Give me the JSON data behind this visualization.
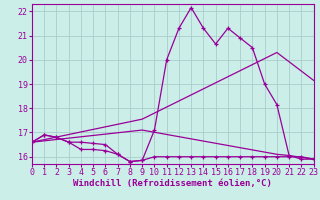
{
  "xlabel": "Windchill (Refroidissement éolien,°C)",
  "bg_color": "#cceee8",
  "grid_color": "#aacccc",
  "line_color": "#990099",
  "xlim": [
    0,
    23
  ],
  "ylim": [
    15.7,
    22.3
  ],
  "xticks": [
    0,
    1,
    2,
    3,
    4,
    5,
    6,
    7,
    8,
    9,
    10,
    11,
    12,
    13,
    14,
    15,
    16,
    17,
    18,
    19,
    20,
    21,
    22,
    23
  ],
  "yticks": [
    16,
    17,
    18,
    19,
    20,
    21,
    22
  ],
  "font_color": "#990099",
  "font_size_label": 6.5,
  "font_size_tick": 6,
  "line1_x": [
    0,
    1,
    2,
    3,
    4,
    5,
    6,
    7,
    8,
    9,
    10,
    11,
    12,
    13,
    14,
    15,
    16,
    17,
    18,
    19,
    20,
    21,
    22,
    23
  ],
  "line1_y": [
    16.6,
    16.9,
    16.8,
    16.6,
    16.3,
    16.3,
    16.25,
    16.1,
    15.8,
    15.85,
    16.0,
    16.0,
    16.0,
    16.0,
    16.0,
    16.0,
    16.0,
    16.0,
    16.0,
    16.0,
    16.0,
    16.0,
    16.0,
    15.9
  ],
  "line2_x": [
    0,
    1,
    2,
    3,
    4,
    5,
    6,
    7,
    8,
    9,
    10,
    11,
    12,
    13,
    14,
    15,
    16,
    17,
    18,
    19,
    20,
    21,
    22,
    23
  ],
  "line2_y": [
    16.6,
    16.9,
    16.8,
    16.6,
    16.6,
    16.55,
    16.5,
    16.1,
    15.8,
    15.85,
    17.1,
    20.0,
    21.3,
    22.15,
    21.3,
    20.65,
    21.3,
    20.9,
    20.5,
    19.0,
    18.15,
    16.05,
    15.9,
    15.9
  ],
  "line3_x": [
    0,
    9,
    20,
    23
  ],
  "line3_y": [
    16.6,
    17.55,
    20.3,
    19.15
  ],
  "line4_x": [
    0,
    9,
    20,
    21,
    23
  ],
  "line4_y": [
    16.6,
    17.1,
    16.1,
    16.05,
    15.9
  ]
}
